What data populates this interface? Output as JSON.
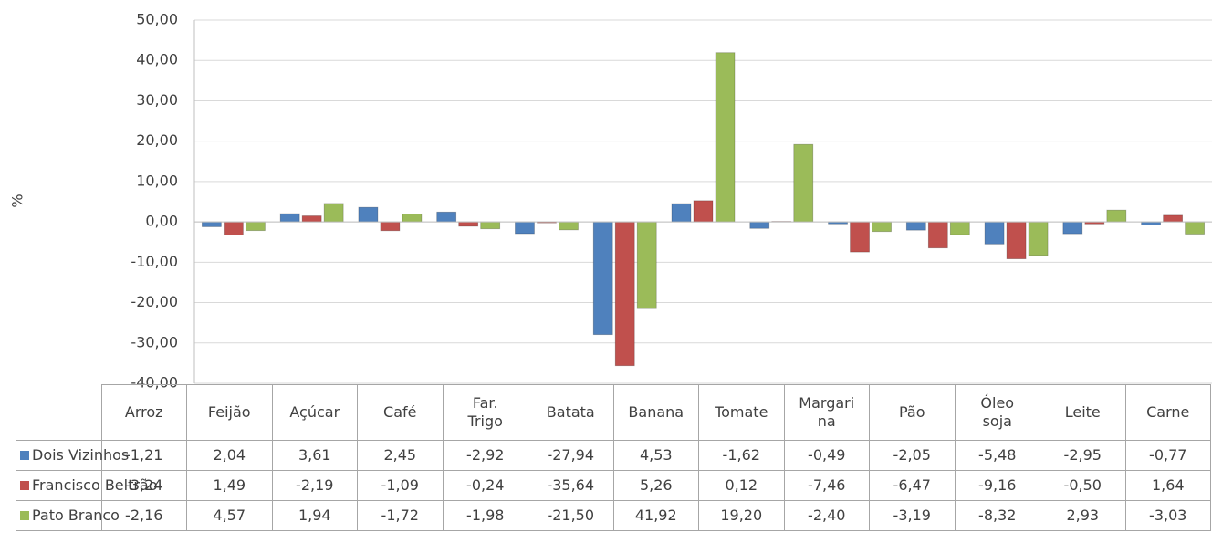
{
  "chart_data": {
    "type": "bar",
    "y_label": "%",
    "categories": [
      "Arroz",
      "Feijão",
      "Açúcar",
      "Café",
      "Far.\nTrigo",
      "Batata",
      "Banana",
      "Tomate",
      "Margari\nna",
      "Pão",
      "Óleo\nsoja",
      "Leite",
      "Carne"
    ],
    "series": [
      {
        "name": "Dois Vizinhos",
        "color": "#4f81bd",
        "values": [
          -1.21,
          2.04,
          3.61,
          2.45,
          -2.92,
          -27.94,
          4.53,
          -1.62,
          -0.49,
          -2.05,
          -5.48,
          -2.95,
          -0.77
        ],
        "value_labels": [
          "-1,21",
          "2,04",
          "3,61",
          "2,45",
          "-2,92",
          "-27,94",
          "4,53",
          "-1,62",
          "-0,49",
          "-2,05",
          "-5,48",
          "-2,95",
          "-0,77"
        ]
      },
      {
        "name": "Francisco Beltrão",
        "color": "#c0504d",
        "values": [
          -3.24,
          1.49,
          -2.19,
          -1.09,
          -0.24,
          -35.64,
          5.26,
          0.12,
          -7.46,
          -6.47,
          -9.16,
          -0.5,
          1.64
        ],
        "value_labels": [
          "-3,24",
          "1,49",
          "-2,19",
          "-1,09",
          "-0,24",
          "-35,64",
          "5,26",
          "0,12",
          "-7,46",
          "-6,47",
          "-9,16",
          "-0,50",
          "1,64"
        ]
      },
      {
        "name": "Pato Branco",
        "color": "#9bbb59",
        "values": [
          -2.16,
          4.57,
          1.94,
          -1.72,
          -1.98,
          -21.5,
          41.92,
          19.2,
          -2.4,
          -3.19,
          -8.32,
          2.93,
          -3.03
        ],
        "value_labels": [
          "-2,16",
          "4,57",
          "1,94",
          "-1,72",
          "-1,98",
          "-21,50",
          "41,92",
          "19,20",
          "-2,40",
          "-3,19",
          "-8,32",
          "2,93",
          "-3,03"
        ]
      }
    ],
    "ylim": [
      -40,
      50
    ],
    "yticks": [
      {
        "value": -40,
        "label": "-40,00"
      },
      {
        "value": -30,
        "label": "-30,00"
      },
      {
        "value": -20,
        "label": "-20,00"
      },
      {
        "value": -10,
        "label": "-10,00"
      },
      {
        "value": 0,
        "label": "0,00"
      },
      {
        "value": 10,
        "label": "10,00"
      },
      {
        "value": 20,
        "label": "20,00"
      },
      {
        "value": 30,
        "label": "30,00"
      },
      {
        "value": 40,
        "label": "40,00"
      },
      {
        "value": 50,
        "label": "50,00"
      }
    ],
    "grid": true
  }
}
